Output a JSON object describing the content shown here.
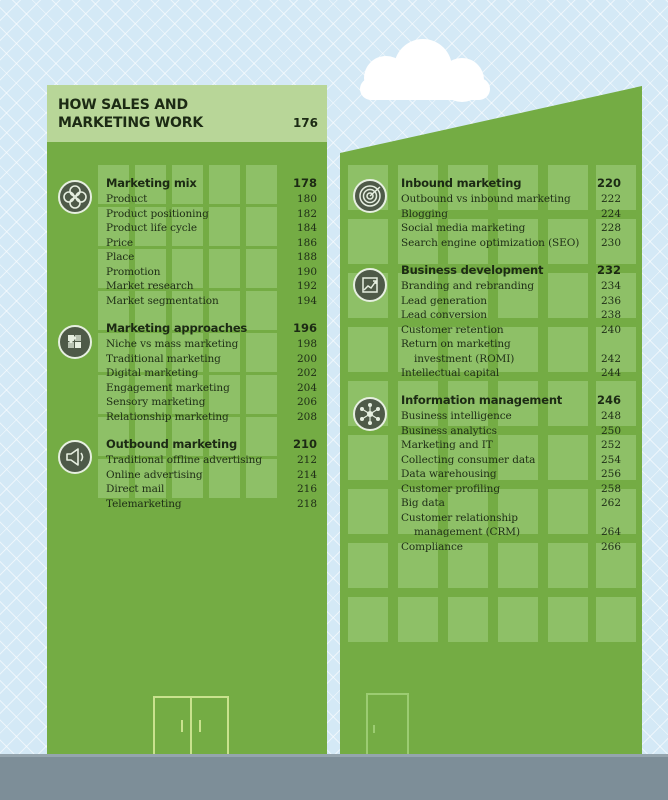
{
  "banner": {
    "title": "HOW SALES AND MARKETING WORK",
    "page": "176"
  },
  "left_sections": [
    {
      "icon": "clover-icon",
      "heading": "Marketing mix",
      "page": "178",
      "items": [
        {
          "label": "Product",
          "page": "180"
        },
        {
          "label": "Product positioning",
          "page": "182"
        },
        {
          "label": "Product life cycle",
          "page": "184"
        },
        {
          "label": "Price",
          "page": "186"
        },
        {
          "label": "Place",
          "page": "188"
        },
        {
          "label": "Promotion",
          "page": "190"
        },
        {
          "label": "Market research",
          "page": "192"
        },
        {
          "label": "Market segmentation",
          "page": "194"
        }
      ]
    },
    {
      "icon": "puzzle-icon",
      "heading": "Marketing approaches",
      "page": "196",
      "items": [
        {
          "label": "Niche vs mass marketing",
          "page": "198"
        },
        {
          "label": "Traditional marketing",
          "page": "200"
        },
        {
          "label": "Digital marketing",
          "page": "202"
        },
        {
          "label": "Engagement marketing",
          "page": "204"
        },
        {
          "label": "Sensory marketing",
          "page": "206"
        },
        {
          "label": "Relationship marketing",
          "page": "208"
        }
      ]
    },
    {
      "icon": "megaphone-icon",
      "heading": "Outbound marketing",
      "page": "210",
      "items": [
        {
          "label": "Traditional offline advertising",
          "page": "212"
        },
        {
          "label": "Online advertising",
          "page": "214"
        },
        {
          "label": "Direct mail",
          "page": "216"
        },
        {
          "label": "Telemarketing",
          "page": "218"
        }
      ]
    }
  ],
  "right_sections": [
    {
      "icon": "target-icon",
      "heading": "Inbound marketing",
      "page": "220",
      "items": [
        {
          "label": "Outbound vs inbound marketing",
          "page": "222"
        },
        {
          "label": "Blogging",
          "page": "224"
        },
        {
          "label": "Social media marketing",
          "page": "228"
        },
        {
          "label": "Search engine optimization (SEO)",
          "page": "230"
        }
      ]
    },
    {
      "icon": "growth-chart-icon",
      "heading": "Business development",
      "page": "232",
      "items": [
        {
          "label": "Branding and rebranding",
          "page": "234"
        },
        {
          "label": "Lead generation",
          "page": "236"
        },
        {
          "label": "Lead conversion",
          "page": "238"
        },
        {
          "label": "Customer retention",
          "page": "240"
        },
        {
          "label": "Return on marketing",
          "page": ""
        },
        {
          "label": "investment (ROMI)",
          "page": "242"
        },
        {
          "label": "Intellectual capital",
          "page": "244"
        }
      ]
    },
    {
      "icon": "network-icon",
      "heading": "Information management",
      "page": "246",
      "items": [
        {
          "label": "Business intelligence",
          "page": "248"
        },
        {
          "label": "Business analytics",
          "page": "250"
        },
        {
          "label": "Marketing and IT",
          "page": "252"
        },
        {
          "label": "Collecting consumer data",
          "page": "254"
        },
        {
          "label": "Data warehousing",
          "page": "256"
        },
        {
          "label": "Customer profiling",
          "page": "258"
        },
        {
          "label": "Big data",
          "page": "262"
        },
        {
          "label": "Customer relationship",
          "page": ""
        },
        {
          "label": "management (CRM)",
          "page": "264"
        },
        {
          "label": "Compliance",
          "page": "266"
        }
      ]
    }
  ],
  "colors": {
    "building": "#74ac44",
    "banner": "#b8d698",
    "sky": "#d4e9f6",
    "ground": "#7d8e98"
  }
}
